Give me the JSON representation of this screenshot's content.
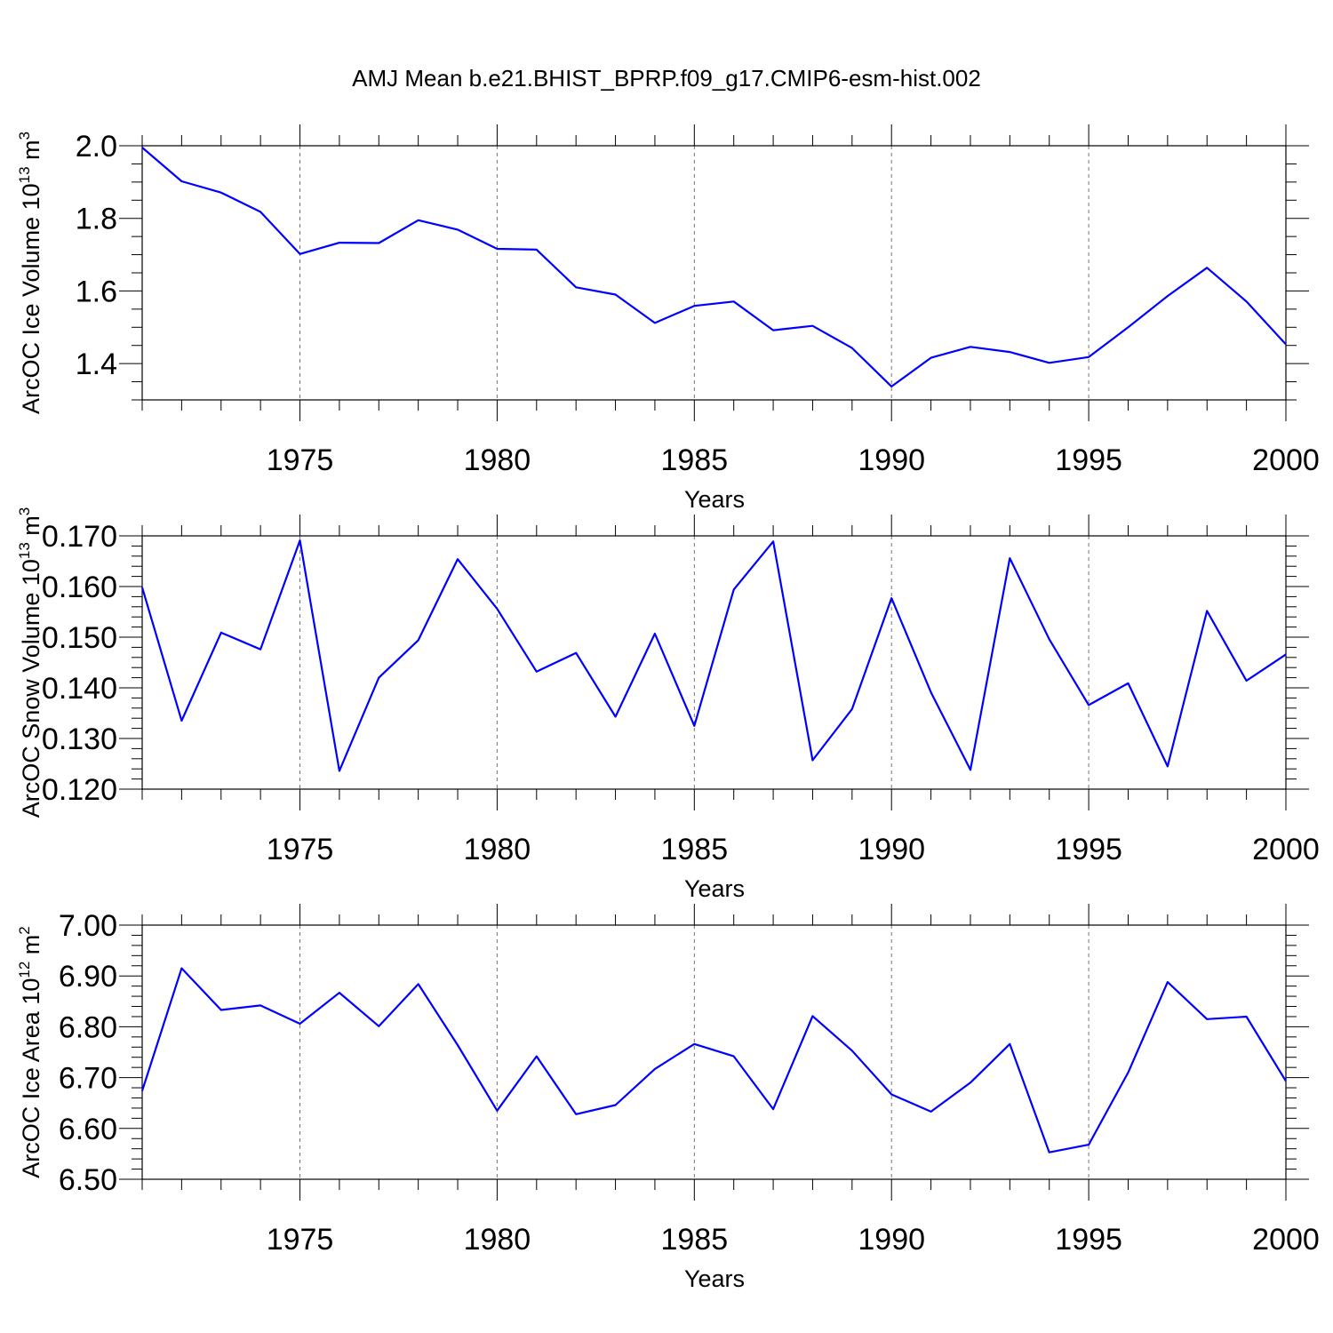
{
  "title": "AMJ Mean b.e21.BHIST_BPRP.f09_g17.CMIP6-esm-hist.002",
  "colors": {
    "series": "#0000ff",
    "axis": "#000000",
    "grid": "#777777"
  },
  "chart_data": [
    {
      "type": "line",
      "title": "AMJ Mean b.e21.BHIST_BPRP.f09_g17.CMIP6-esm-hist.002",
      "xlabel": "Years",
      "ylabel": "ArcOC Ice Volume 10",
      "ylabel_exp": "13",
      "ylabel_unit": " m",
      "ylabel_unit_exp": "3",
      "xlim": [
        1971,
        2000
      ],
      "ylim": [
        1.3,
        2.0
      ],
      "yticks": [
        1.4,
        1.6,
        1.8,
        2.0
      ],
      "ytick_labels": [
        "1.4",
        "1.6",
        "1.8",
        "2.0"
      ],
      "ytick_minor": 0.05,
      "xticks": [
        1975,
        1980,
        1985,
        1990,
        1995,
        2000
      ],
      "xtick_labels": [
        "1975",
        "1980",
        "1985",
        "1990",
        "1995",
        "2000"
      ],
      "grid": "vertical dashed at major x ticks",
      "x": [
        1971,
        1972,
        1973,
        1974,
        1975,
        1976,
        1977,
        1978,
        1979,
        1980,
        1981,
        1982,
        1983,
        1984,
        1985,
        1986,
        1987,
        1988,
        1989,
        1990,
        1991,
        1992,
        1993,
        1994,
        1995,
        1996,
        1997,
        1998,
        1999,
        2000
      ],
      "series": [
        {
          "name": "ArcOC Ice Volume",
          "values": [
            1.995,
            1.902,
            1.871,
            1.818,
            1.702,
            1.733,
            1.732,
            1.795,
            1.769,
            1.716,
            1.714,
            1.61,
            1.59,
            1.512,
            1.559,
            1.571,
            1.492,
            1.504,
            1.443,
            1.337,
            1.416,
            1.446,
            1.432,
            1.402,
            1.418,
            1.5,
            1.586,
            1.664,
            1.571,
            1.453
          ]
        }
      ]
    },
    {
      "type": "line",
      "xlabel": "Years",
      "ylabel": "ArcOC Snow Volume 10",
      "ylabel_exp": "13",
      "ylabel_unit": " m",
      "ylabel_unit_exp": "3",
      "xlim": [
        1971,
        2000
      ],
      "ylim": [
        0.12,
        0.17
      ],
      "yticks": [
        0.12,
        0.13,
        0.14,
        0.15,
        0.16,
        0.17
      ],
      "ytick_labels": [
        "0.120",
        "0.130",
        "0.140",
        "0.150",
        "0.160",
        "0.170"
      ],
      "ytick_minor": 0.002,
      "xticks": [
        1975,
        1980,
        1985,
        1990,
        1995,
        2000
      ],
      "xtick_labels": [
        "1975",
        "1980",
        "1985",
        "1990",
        "1995",
        "2000"
      ],
      "grid": "vertical dashed at major x ticks",
      "x": [
        1971,
        1972,
        1973,
        1974,
        1975,
        1976,
        1977,
        1978,
        1979,
        1980,
        1981,
        1982,
        1983,
        1984,
        1985,
        1986,
        1987,
        1988,
        1989,
        1990,
        1991,
        1992,
        1993,
        1994,
        1995,
        1996,
        1997,
        1998,
        1999,
        2000
      ],
      "series": [
        {
          "name": "ArcOC Snow Volume",
          "values": [
            0.1598,
            0.1335,
            0.1509,
            0.1476,
            0.1691,
            0.1236,
            0.142,
            0.1494,
            0.1654,
            0.1556,
            0.1432,
            0.1469,
            0.1343,
            0.1507,
            0.1325,
            0.1594,
            0.1689,
            0.1257,
            0.1358,
            0.1577,
            0.1391,
            0.1238,
            0.1656,
            0.1496,
            0.1366,
            0.1409,
            0.1245,
            0.1552,
            0.1414,
            0.1466
          ]
        }
      ]
    },
    {
      "type": "line",
      "xlabel": "Years",
      "ylabel": "ArcOC Ice Area 10",
      "ylabel_exp": "12",
      "ylabel_unit": " m",
      "ylabel_unit_exp": "2",
      "xlim": [
        1971,
        2000
      ],
      "ylim": [
        6.5,
        7.0
      ],
      "yticks": [
        6.5,
        6.6,
        6.7,
        6.8,
        6.9,
        7.0
      ],
      "ytick_labels": [
        "6.50",
        "6.60",
        "6.70",
        "6.80",
        "6.90",
        "7.00"
      ],
      "ytick_minor": 0.02,
      "xticks": [
        1975,
        1980,
        1985,
        1990,
        1995,
        2000
      ],
      "xtick_labels": [
        "1975",
        "1980",
        "1985",
        "1990",
        "1995",
        "2000"
      ],
      "grid": "vertical dashed at major x ticks",
      "x": [
        1971,
        1972,
        1973,
        1974,
        1975,
        1976,
        1977,
        1978,
        1979,
        1980,
        1981,
        1982,
        1983,
        1984,
        1985,
        1986,
        1987,
        1988,
        1989,
        1990,
        1991,
        1992,
        1993,
        1994,
        1995,
        1996,
        1997,
        1998,
        1999,
        2000
      ],
      "series": [
        {
          "name": "ArcOC Ice Area",
          "values": [
            6.674,
            6.915,
            6.833,
            6.842,
            6.806,
            6.867,
            6.801,
            6.884,
            6.764,
            6.635,
            6.742,
            6.628,
            6.646,
            6.717,
            6.766,
            6.742,
            6.638,
            6.821,
            6.753,
            6.667,
            6.633,
            6.69,
            6.766,
            6.553,
            6.568,
            6.71,
            6.888,
            6.815,
            6.82,
            6.693
          ]
        }
      ]
    }
  ]
}
